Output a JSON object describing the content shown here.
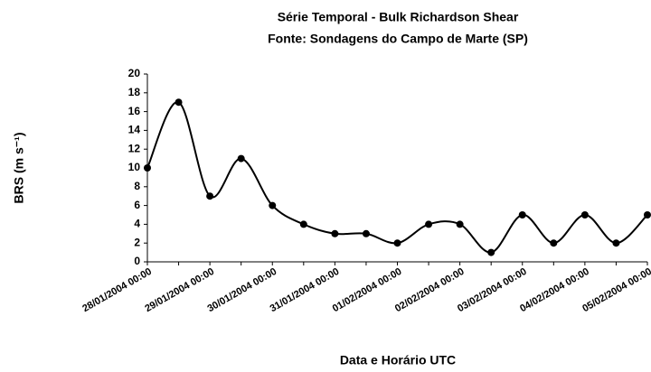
{
  "chart_data": {
    "type": "line",
    "title": "Série Temporal - Bulk Richardson Shear",
    "subtitle": "Fonte: Sondagens do Campo de Marte (SP)",
    "y_label": "BRS (m s⁻¹)",
    "x_label": "Data e Horário UTC",
    "categories": [
      "28/01/2004 00:00",
      null,
      "29/01/2004 00:00",
      null,
      "30/01/2004 00:00",
      null,
      "31/01/2004 00:00",
      null,
      "01/02/2004 00:00",
      null,
      "02/02/2004 00:00",
      null,
      "03/02/2004 00:00",
      null,
      "04/02/2004 00:00",
      null,
      "05/02/2004 00:00"
    ],
    "series": [
      {
        "name": "BRS",
        "color": "#000000",
        "values": [
          10,
          17,
          7,
          11,
          6,
          4,
          3,
          3,
          2,
          4,
          4,
          1,
          5,
          2,
          5,
          2,
          5
        ]
      }
    ],
    "ylim": [
      0,
      20
    ],
    "yticks": [
      0,
      2,
      4,
      6,
      8,
      10,
      12,
      14,
      16,
      18,
      20
    ],
    "grid": false
  }
}
